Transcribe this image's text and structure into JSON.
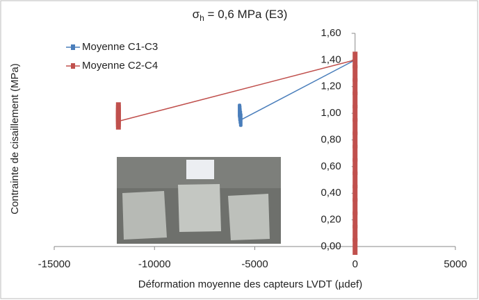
{
  "chart_data": {
    "type": "line",
    "title_symbol": "σ",
    "title_subscript": "h",
    "title_rest": " = 0,6 MPa (E3)",
    "x_label": "Déformation moyenne des capteurs LVDT (µdef)",
    "y_label": "Contrainte de cisaillement (MPa)",
    "xlim": [
      -15000,
      5000
    ],
    "xticks": [
      -15000,
      -10000,
      -5000,
      0,
      5000
    ],
    "ylim": [
      0,
      1.6
    ],
    "yticks": [
      {
        "value": 0,
        "label": "0,00"
      },
      {
        "value": 0.2,
        "label": "0,20"
      },
      {
        "value": 0.4,
        "label": "0,40"
      },
      {
        "value": 0.6,
        "label": "0,60"
      },
      {
        "value": 0.8,
        "label": "0,80"
      },
      {
        "value": 1.0,
        "label": "1,00"
      },
      {
        "value": 1.2,
        "label": "1,20"
      },
      {
        "value": 1.4,
        "label": "1,40"
      },
      {
        "value": 1.6,
        "label": "1,60"
      }
    ],
    "legend": "top-left",
    "series": [
      {
        "name": "Moyenne C1-C3",
        "color": "#4a7ebb",
        "x": [
          0,
          0,
          0,
          0,
          0,
          0,
          0,
          0,
          0,
          0,
          0,
          0,
          0,
          0,
          0,
          -5700,
          -5720,
          -5740,
          -5750,
          -5760
        ],
        "values": [
          0,
          0.1,
          0.2,
          0.3,
          0.4,
          0.5,
          0.6,
          0.7,
          0.8,
          0.9,
          1.0,
          1.1,
          1.2,
          1.3,
          1.4,
          0.95,
          0.97,
          0.99,
          1.01,
          1.02
        ]
      },
      {
        "name": "Moyenne C2-C4",
        "color": "#c0504d",
        "x": [
          0,
          0,
          0,
          0,
          0,
          0,
          0,
          0,
          0,
          0,
          0,
          0,
          0,
          0,
          0,
          -11800,
          -11800,
          -11800,
          -11800,
          -11800
        ],
        "values": [
          0,
          0.1,
          0.2,
          0.3,
          0.4,
          0.5,
          0.6,
          0.7,
          0.8,
          0.9,
          1.0,
          1.1,
          1.2,
          1.3,
          1.4,
          0.94,
          0.96,
          0.98,
          1.0,
          1.02
        ]
      }
    ]
  }
}
